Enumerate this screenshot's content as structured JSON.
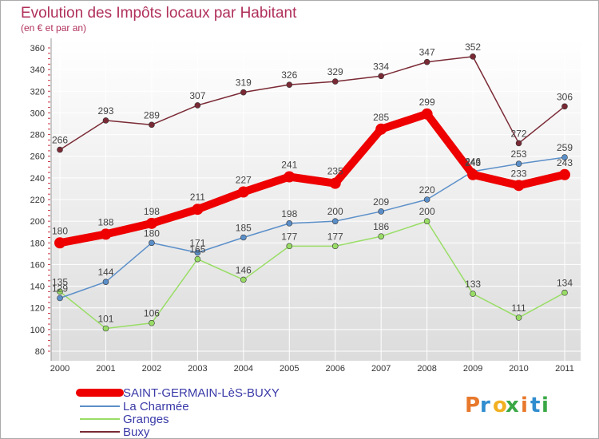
{
  "title": "Evolution des Impôts locaux par Habitant",
  "subtitle": "(en € et par an)",
  "logo": "Proxiti",
  "colors": {
    "background": "#ffffff",
    "plot_bg_top": "#ffffff",
    "plot_bg_bottom": "#dcdcdc",
    "grid": "#ffffff",
    "title": "#b0305a",
    "legend_text": "#3a3aa8"
  },
  "chart_data": {
    "type": "line",
    "title": "Evolution des Impôts locaux par Habitant",
    "subtitle": "(en € et par an)",
    "xlabel": "",
    "ylabel": "",
    "ylim": [
      80,
      360
    ],
    "yticks": [
      80,
      100,
      120,
      140,
      160,
      180,
      200,
      220,
      240,
      260,
      280,
      300,
      320,
      340,
      360
    ],
    "grid": true,
    "legend_position": "bottom-left",
    "categories": [
      "2000",
      "2001",
      "2002",
      "2003",
      "2004",
      "2005",
      "2006",
      "2007",
      "2008",
      "2009",
      "2010",
      "2011"
    ],
    "series": [
      {
        "name": "SAINT-GERMAIN-LèS-BUXY",
        "color": "#ee0000",
        "values": [
          180,
          188,
          198,
          211,
          227,
          241,
          235,
          285,
          299,
          243,
          233,
          243
        ]
      },
      {
        "name": "La Charmée",
        "color": "#5b8fc9",
        "values": [
          129,
          144,
          180,
          171,
          185,
          198,
          200,
          209,
          220,
          246,
          253,
          259
        ]
      },
      {
        "name": "Granges",
        "color": "#99dd66",
        "values": [
          135,
          101,
          106,
          165,
          146,
          177,
          177,
          186,
          200,
          133,
          111,
          134
        ]
      },
      {
        "name": "Buxy",
        "color": "#7a2a35",
        "values": [
          266,
          293,
          289,
          307,
          319,
          326,
          329,
          334,
          347,
          352,
          272,
          306
        ]
      }
    ]
  }
}
